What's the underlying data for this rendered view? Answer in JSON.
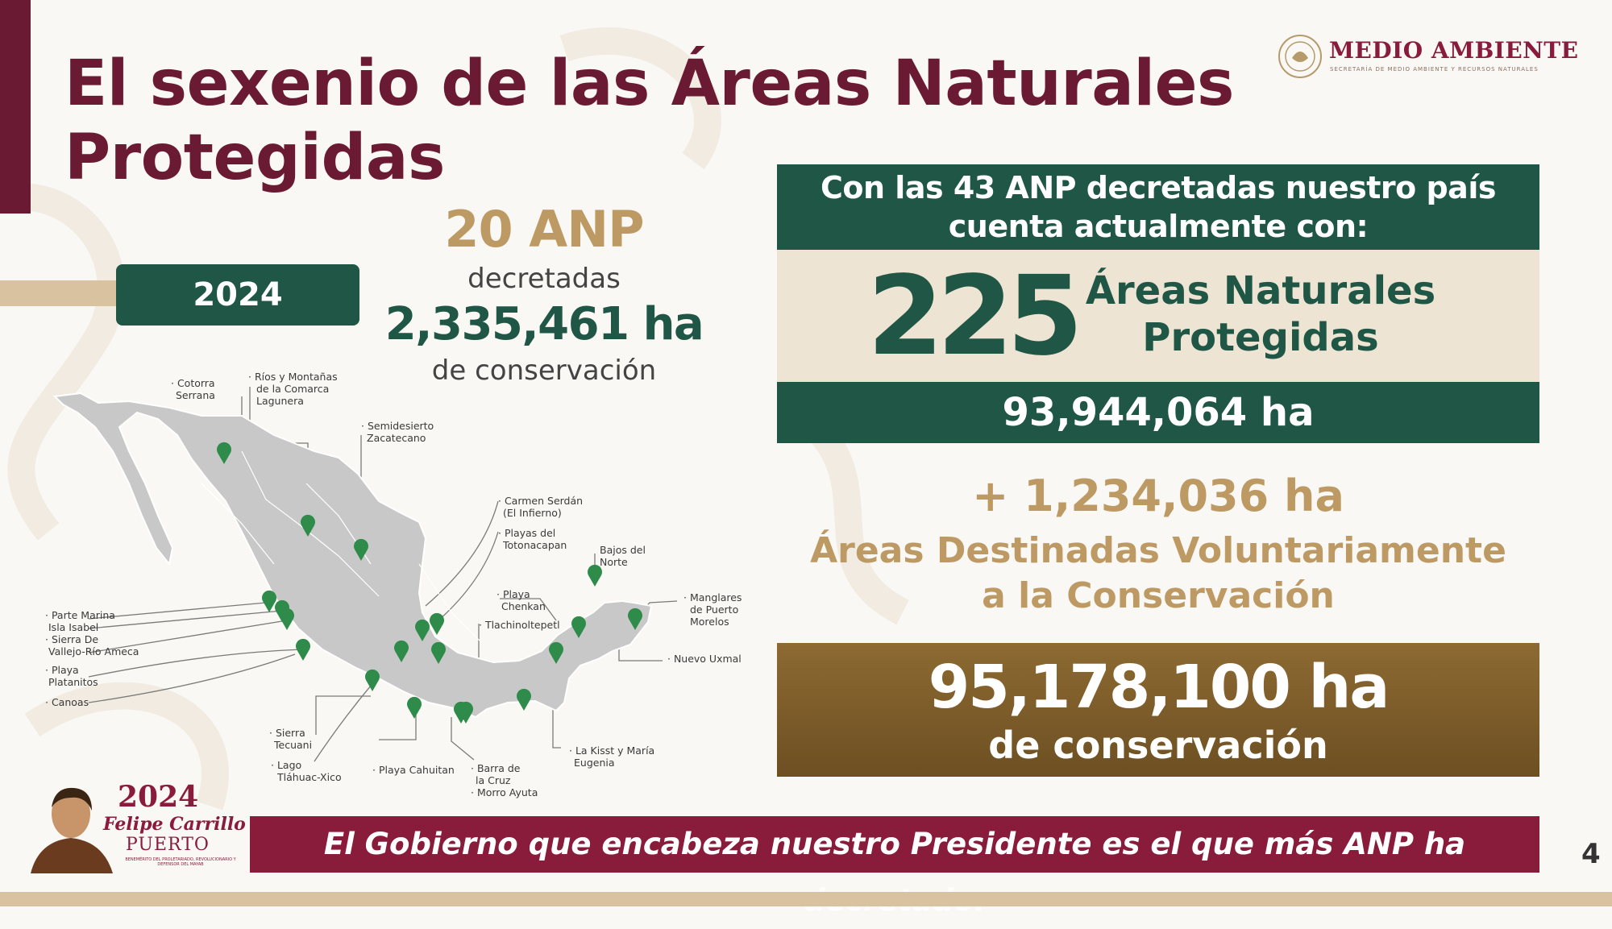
{
  "title": {
    "line1": "El sexenio de las Áreas Naturales",
    "line2": "Protegidas"
  },
  "logo": {
    "main": "MEDIO AMBIENTE",
    "sub": "SECRETARÍA DE MEDIO AMBIENTE Y RECURSOS NATURALES"
  },
  "year_badge": "2024",
  "year_stats": {
    "anp_count": "20 ANP",
    "decretadas": "decretadas",
    "hectares": "2,335,461 ha",
    "conservacion": "de conservación"
  },
  "map_labels": {
    "cotorra": [
      "· Cotorra",
      "Serrana"
    ],
    "rios": [
      "· Ríos y Montañas",
      "de la Comarca",
      "Lagunera"
    ],
    "semidesierto": [
      "· Semidesierto",
      "Zacatecano"
    ],
    "carmen": [
      "· Carmen Serdán",
      "(El Infierno)"
    ],
    "playas_toto": [
      "· Playas del",
      "Totonacapan"
    ],
    "bajos": [
      "Bajos del",
      "Norte"
    ],
    "playa_chenkan": [
      "· Playa",
      "Chenkan"
    ],
    "tlachi": [
      "· Tlachinoltepetl"
    ],
    "manglares": [
      "· Manglares",
      "de Puerto",
      "Morelos"
    ],
    "nuevo_uxmal": [
      "· Nuevo Uxmal"
    ],
    "parte_marina": [
      "· Parte Marina",
      "Isla Isabel",
      "· Sierra De",
      "Vallejo-Río Ameca"
    ],
    "playa_platanitos": [
      "· Playa",
      "Platanitos"
    ],
    "canoas": [
      "· Canoas"
    ],
    "sierra_tecuani": [
      "· Sierra",
      "Tecuani"
    ],
    "lago": [
      "· Lago",
      "Tláhuac-Xico"
    ],
    "playa_cahuitan": [
      "· Playa Cahuitan"
    ],
    "barra": [
      "· Barra de",
      "la Cruz",
      "· Morro Ayuta"
    ],
    "la_kisst": [
      "· La Kisst y María",
      "Eugenia"
    ]
  },
  "summary": {
    "header": [
      "Con las 43 ANP decretadas nuestro país",
      "cuenta actualmente con:"
    ],
    "count": "225",
    "count_label": [
      "Áreas Naturales",
      "Protegidas"
    ],
    "hectares": "93,944,064 ha"
  },
  "voluntary": {
    "hectares": "+ 1,234,036 ha",
    "label": [
      "Áreas Destinadas Voluntariamente",
      "a la Conservación"
    ]
  },
  "total": {
    "hectares": "95,178,100 ha",
    "label": "de conservación"
  },
  "emblem": {
    "year": "2024",
    "name": "Felipe Carrillo",
    "surname": "PUERTO",
    "small": "BENEMÉRITO DEL PROLETARIADO, REVOLUCIONARIO Y DEFENSOR DEL MAYAB"
  },
  "banner": "El Gobierno que encabeza nuestro Presidente es el que más ANP ha decretado.",
  "page_number": "4",
  "colors": {
    "maroon": "#6b1a33",
    "green": "#1f5645",
    "gold": "#bd9a63",
    "brown": "#7a5a28"
  }
}
